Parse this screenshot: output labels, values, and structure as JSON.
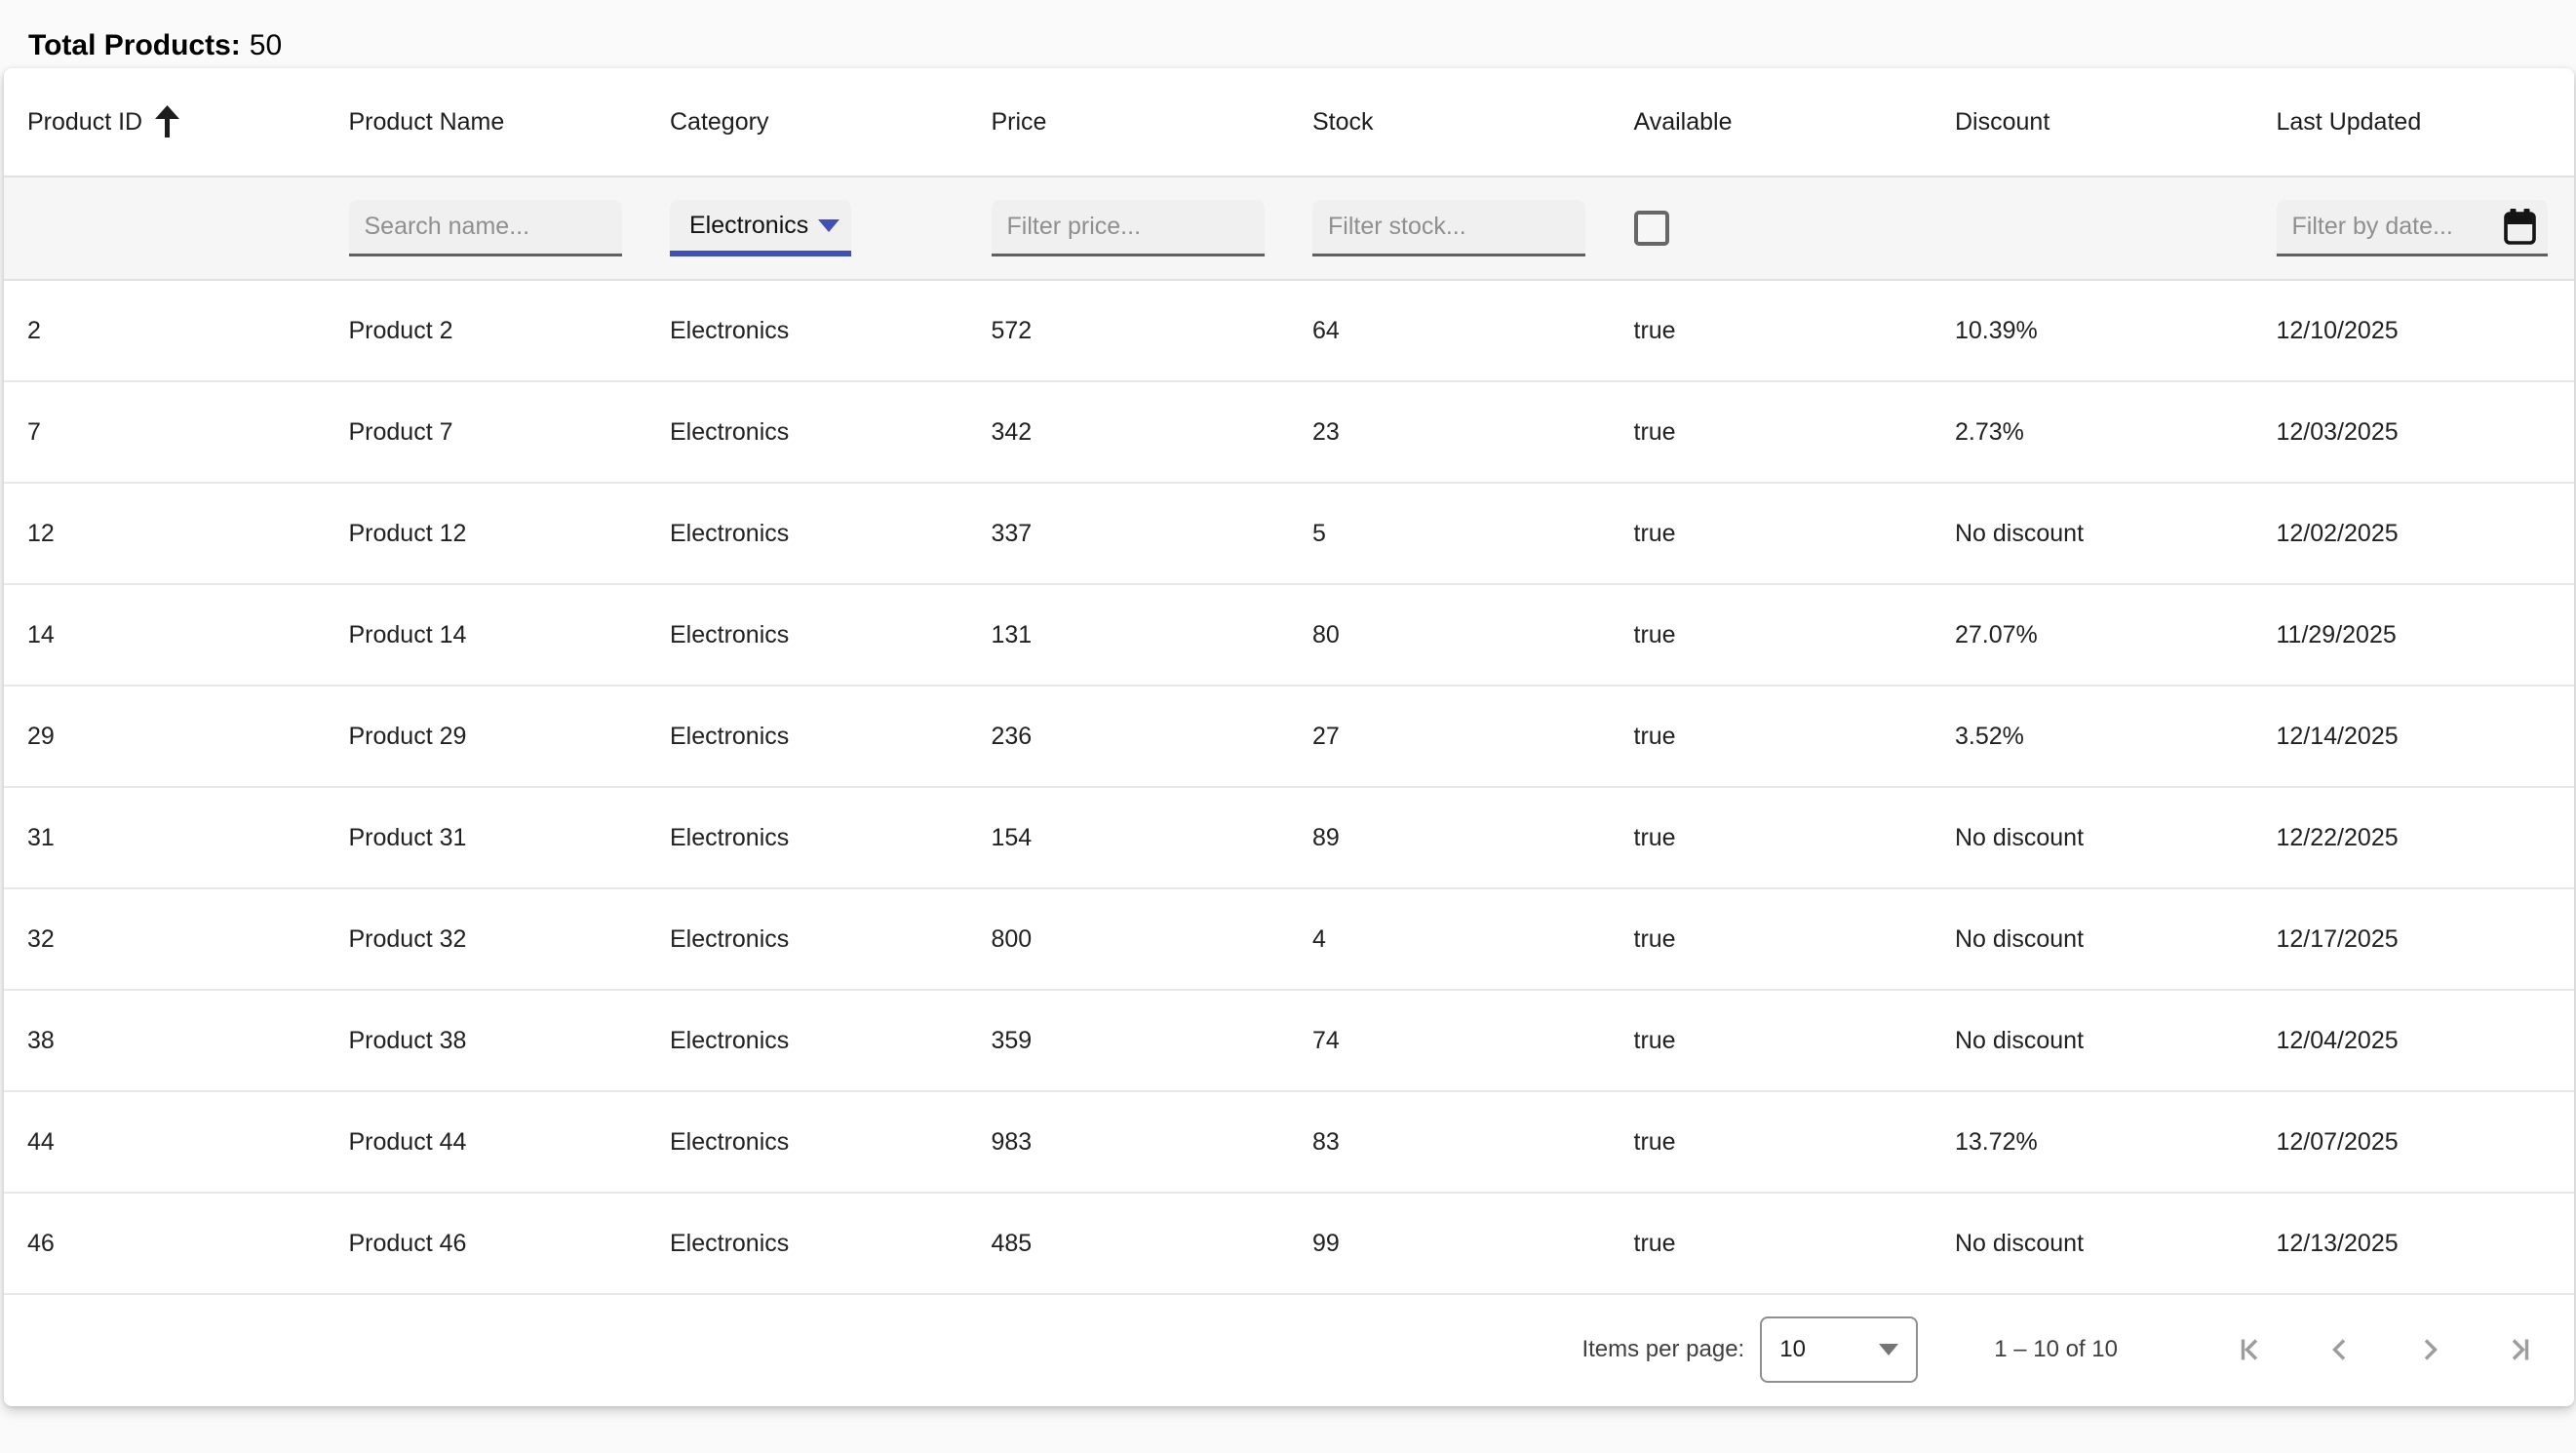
{
  "colors": {
    "accent": "#3f51b5"
  },
  "header": {
    "total_label": "Total Products:",
    "total_value": "50"
  },
  "table": {
    "columns": [
      {
        "label": "Product ID",
        "sorted": "asc"
      },
      {
        "label": "Product Name"
      },
      {
        "label": "Category"
      },
      {
        "label": "Price"
      },
      {
        "label": "Stock"
      },
      {
        "label": "Available"
      },
      {
        "label": "Discount"
      },
      {
        "label": "Last Updated"
      }
    ],
    "filters": {
      "name_placeholder": "Search name...",
      "category_value": "Electronics",
      "price_placeholder": "Filter price...",
      "stock_placeholder": "Filter stock...",
      "available_checked": false,
      "date_placeholder": "Filter by date..."
    },
    "rows": [
      [
        "2",
        "Product 2",
        "Electronics",
        "572",
        "64",
        "true",
        "10.39%",
        "12/10/2025"
      ],
      [
        "7",
        "Product 7",
        "Electronics",
        "342",
        "23",
        "true",
        "2.73%",
        "12/03/2025"
      ],
      [
        "12",
        "Product 12",
        "Electronics",
        "337",
        "5",
        "true",
        "No discount",
        "12/02/2025"
      ],
      [
        "14",
        "Product 14",
        "Electronics",
        "131",
        "80",
        "true",
        "27.07%",
        "11/29/2025"
      ],
      [
        "29",
        "Product 29",
        "Electronics",
        "236",
        "27",
        "true",
        "3.52%",
        "12/14/2025"
      ],
      [
        "31",
        "Product 31",
        "Electronics",
        "154",
        "89",
        "true",
        "No discount",
        "12/22/2025"
      ],
      [
        "32",
        "Product 32",
        "Electronics",
        "800",
        "4",
        "true",
        "No discount",
        "12/17/2025"
      ],
      [
        "38",
        "Product 38",
        "Electronics",
        "359",
        "74",
        "true",
        "No discount",
        "12/04/2025"
      ],
      [
        "44",
        "Product 44",
        "Electronics",
        "983",
        "83",
        "true",
        "13.72%",
        "12/07/2025"
      ],
      [
        "46",
        "Product 46",
        "Electronics",
        "485",
        "99",
        "true",
        "No discount",
        "12/13/2025"
      ]
    ],
    "paginator": {
      "items_per_page_label": "Items per page:",
      "page_size": "10",
      "range_label": "1 – 10 of 10"
    }
  }
}
